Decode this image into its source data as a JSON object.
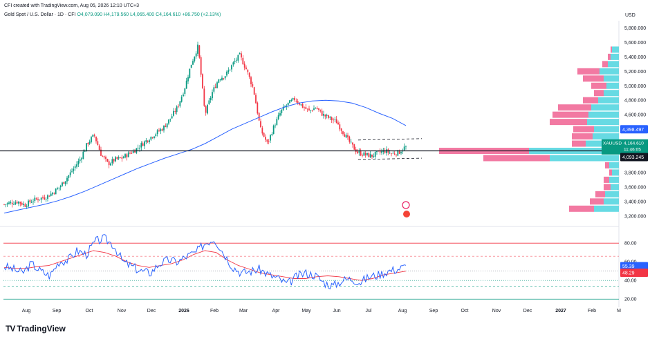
{
  "header": {
    "created_by": "CFI created with TradingView.com, Aug 05, 2026 12:10 UTC+3",
    "symbol": "Gold Spot / U.S. Dollar · 1D · CFI",
    "ohlc": "O4,079.090 H4,179.560 L4,065.400 C4,164.610 +86.750 (+2.13%)"
  },
  "brand": {
    "name": "TradingView",
    "logo": "TV"
  },
  "currency": "USD",
  "colors": {
    "up": "#089981",
    "down": "#f23645",
    "ma": "#2962ff",
    "rsi": "#2962ff",
    "rsi_ma": "#f23645",
    "vp_up": "#56d6e0",
    "vp_down": "#f06292",
    "hline": "#131722"
  },
  "chart_data": [
    {
      "type": "candlestick",
      "x_labels": [
        "Aug",
        "Sep",
        "Oct",
        "Nov",
        "Dec",
        "2026",
        "Feb",
        "Mar",
        "Apr",
        "May",
        "Jun",
        "Jul",
        "Aug",
        "Sep",
        "Oct",
        "Nov",
        "Dec",
        "2027",
        "Feb",
        "M"
      ],
      "y_ticks": [
        3200,
        3400,
        3600,
        3800,
        4000,
        4200,
        4400,
        4600,
        4800,
        5000,
        5200,
        5400,
        5600,
        5800
      ],
      "y_tick_labels": [
        "3,200.000",
        "3,400.000",
        "3,600.000",
        "3,800.000",
        "",
        "",
        "",
        "4,600.000",
        "4,800.000",
        "5,000.000",
        "5,200.000",
        "5,400.000",
        "5,600.000",
        "5,800.000"
      ],
      "ylim": [
        3150,
        5900
      ],
      "price_path": [
        3360,
        3380,
        3400,
        3350,
        3410,
        3440,
        3460,
        3520,
        3600,
        3720,
        3850,
        3990,
        4200,
        4320,
        4050,
        3920,
        3980,
        4000,
        4060,
        4120,
        4200,
        4280,
        4350,
        4420,
        4550,
        4700,
        4950,
        5300,
        5550,
        4600,
        4900,
        5100,
        5150,
        5300,
        5420,
        5220,
        4950,
        4400,
        4200,
        4450,
        4650,
        4750,
        4820,
        4720,
        4650,
        4700,
        4600,
        4550,
        4500,
        4350,
        4200,
        4080,
        4050,
        4030,
        4070,
        4100,
        4060,
        4080,
        4164.61
      ],
      "ma_path": [
        3240,
        3280,
        3320,
        3360,
        3410,
        3470,
        3540,
        3620,
        3700,
        3780,
        3860,
        3930,
        4000,
        4060,
        4120,
        4200,
        4300,
        4400,
        4480,
        4560,
        4640,
        4710,
        4760,
        4790,
        4800,
        4790,
        4760,
        4700,
        4620,
        4550,
        4450
      ],
      "channel": {
        "top": 4250,
        "bottom": 3980
      },
      "horizontal_line": 4100,
      "last_price": {
        "symbol": "XAUUSD",
        "price": "4,164.610",
        "countdown": "11:46:05"
      },
      "ma_label": "4,398.497",
      "line_label": "4,093.245",
      "volume_profile": [
        {
          "price": 5500,
          "up": 10,
          "down": 2
        },
        {
          "price": 5400,
          "up": 12,
          "down": 4
        },
        {
          "price": 5300,
          "up": 16,
          "down": 8
        },
        {
          "price": 5200,
          "up": 28,
          "down": 32
        },
        {
          "price": 5100,
          "up": 22,
          "down": 30
        },
        {
          "price": 5000,
          "up": 18,
          "down": 22
        },
        {
          "price": 4900,
          "up": 22,
          "down": 14
        },
        {
          "price": 4800,
          "up": 30,
          "down": 22
        },
        {
          "price": 4700,
          "up": 40,
          "down": 48
        },
        {
          "price": 4600,
          "up": 44,
          "down": 52
        },
        {
          "price": 4500,
          "up": 46,
          "down": 54
        },
        {
          "price": 4400,
          "up": 36,
          "down": 30
        },
        {
          "price": 4300,
          "up": 38,
          "down": 30
        },
        {
          "price": 4200,
          "up": 48,
          "down": 20
        },
        {
          "price": 4100,
          "up": 130,
          "down": 130
        },
        {
          "price": 4000,
          "up": 100,
          "down": 96
        },
        {
          "price": 3900,
          "up": 14,
          "down": 6
        },
        {
          "price": 3800,
          "up": 10,
          "down": 4
        },
        {
          "price": 3700,
          "up": 14,
          "down": 8
        },
        {
          "price": 3600,
          "up": 12,
          "down": 10
        },
        {
          "price": 3500,
          "up": 20,
          "down": 14
        },
        {
          "price": 3400,
          "up": 22,
          "down": 20
        },
        {
          "price": 3300,
          "up": 36,
          "down": 36
        }
      ]
    },
    {
      "type": "line",
      "name": "RSI",
      "y_ticks": [
        20,
        40,
        60,
        80
      ],
      "y_tick_labels": [
        "20.00",
        "40.00",
        "60.00",
        "80.00"
      ],
      "ylim": [
        15,
        92
      ],
      "levels": {
        "upper": 80,
        "upper_dash": 66,
        "mid": 50,
        "lower_dash": 40,
        "lower_dash2": 34,
        "lower": 20
      },
      "rsi_path": [
        55,
        52,
        48,
        58,
        50,
        45,
        60,
        62,
        72,
        68,
        82,
        85,
        78,
        60,
        55,
        50,
        48,
        58,
        62,
        60,
        66,
        70,
        80,
        85,
        70,
        55,
        48,
        50,
        52,
        46,
        42,
        36,
        44,
        48,
        46,
        38,
        34,
        40,
        42,
        38,
        44,
        46,
        50,
        52,
        55
      ],
      "rsi_ma_path": [
        54,
        53,
        53,
        55,
        56,
        60,
        64,
        68,
        72,
        70,
        66,
        60,
        56,
        54,
        56,
        58,
        62,
        68,
        72,
        70,
        62,
        56,
        52,
        48,
        46,
        44,
        42,
        42,
        44,
        45,
        44,
        42,
        40,
        42,
        46,
        48,
        50
      ],
      "rsi_value": "55.39",
      "rsi_ma_value": "48.29"
    }
  ]
}
